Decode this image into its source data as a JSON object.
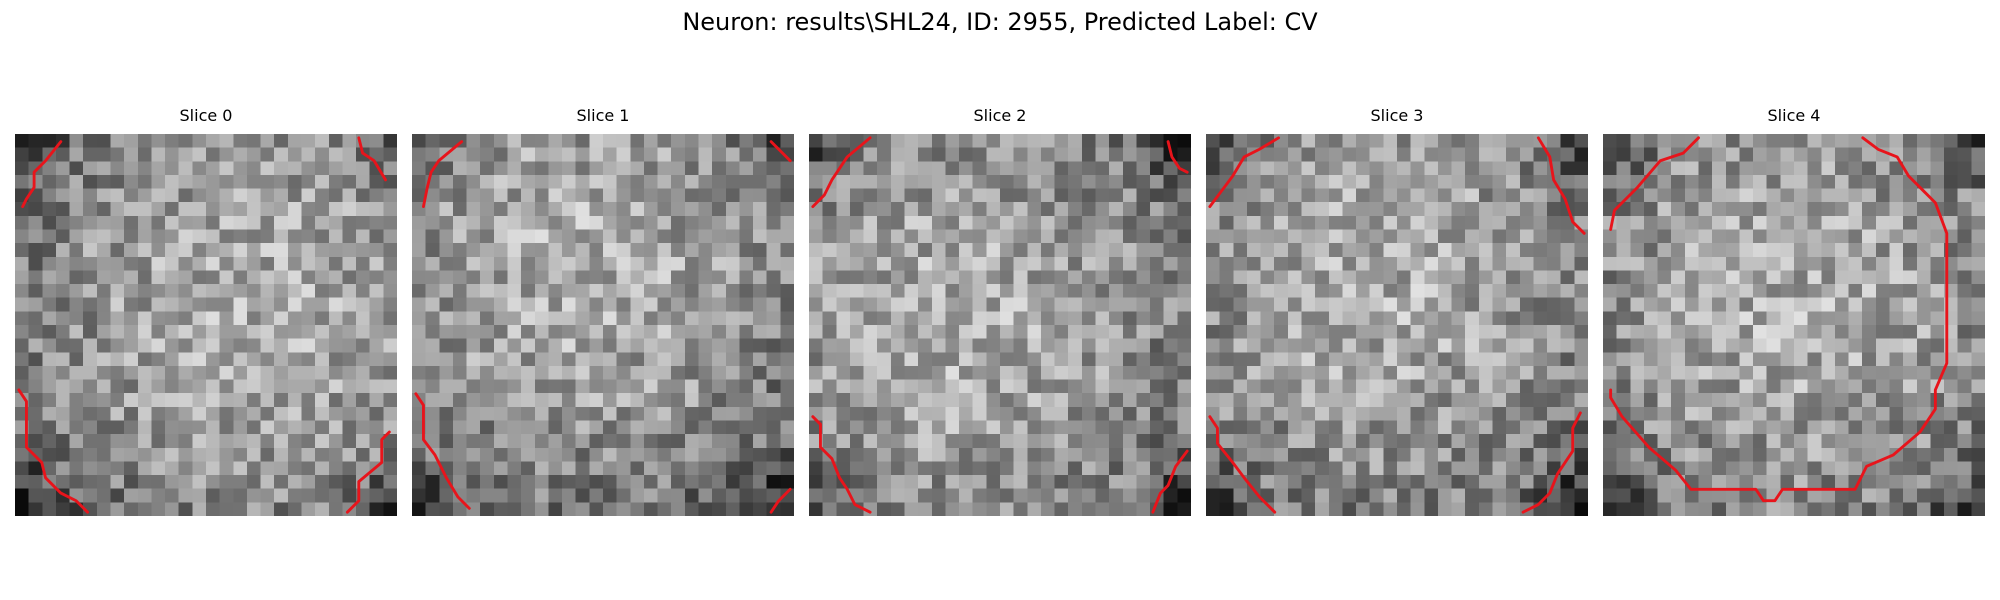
{
  "figure": {
    "title": "Neuron: results\\SHL24, ID: 2955, Predicted Label: CV"
  },
  "panels": [
    {
      "title": "Slice 0",
      "brightness_center": [
        0.62,
        0.45
      ],
      "contour": [
        [
          [
            0.12,
            0.02
          ],
          [
            0.08,
            0.07
          ],
          [
            0.05,
            0.1
          ],
          [
            0.05,
            0.14
          ],
          [
            0.03,
            0.17
          ],
          [
            0.02,
            0.19
          ]
        ],
        [
          [
            0.9,
            0.01
          ],
          [
            0.91,
            0.05
          ],
          [
            0.94,
            0.07
          ],
          [
            0.97,
            0.12
          ]
        ],
        [
          [
            0.01,
            0.67
          ],
          [
            0.03,
            0.7
          ],
          [
            0.03,
            0.82
          ],
          [
            0.07,
            0.86
          ],
          [
            0.08,
            0.9
          ],
          [
            0.12,
            0.94
          ],
          [
            0.16,
            0.96
          ],
          [
            0.19,
            0.99
          ]
        ],
        [
          [
            0.98,
            0.78
          ],
          [
            0.96,
            0.8
          ],
          [
            0.96,
            0.86
          ],
          [
            0.9,
            0.91
          ],
          [
            0.9,
            0.96
          ],
          [
            0.87,
            0.99
          ]
        ]
      ]
    },
    {
      "title": "Slice 1",
      "brightness_center": [
        0.45,
        0.35
      ],
      "contour": [
        [
          [
            0.13,
            0.02
          ],
          [
            0.07,
            0.07
          ],
          [
            0.05,
            0.1
          ],
          [
            0.04,
            0.14
          ],
          [
            0.03,
            0.19
          ]
        ],
        [
          [
            0.94,
            0.02
          ],
          [
            0.99,
            0.07
          ]
        ],
        [
          [
            0.01,
            0.68
          ],
          [
            0.03,
            0.71
          ],
          [
            0.03,
            0.8
          ],
          [
            0.06,
            0.84
          ],
          [
            0.09,
            0.9
          ],
          [
            0.12,
            0.95
          ],
          [
            0.15,
            0.98
          ]
        ],
        [
          [
            0.99,
            0.93
          ],
          [
            0.96,
            0.96
          ],
          [
            0.94,
            0.99
          ]
        ]
      ]
    },
    {
      "title": "Slice 2",
      "brightness_center": [
        0.4,
        0.5
      ],
      "contour": [
        [
          [
            0.16,
            0.01
          ],
          [
            0.1,
            0.06
          ],
          [
            0.06,
            0.12
          ],
          [
            0.04,
            0.16
          ],
          [
            0.01,
            0.19
          ]
        ],
        [
          [
            0.94,
            0.02
          ],
          [
            0.95,
            0.06
          ],
          [
            0.97,
            0.09
          ],
          [
            0.99,
            0.1
          ]
        ],
        [
          [
            0.01,
            0.74
          ],
          [
            0.03,
            0.76
          ],
          [
            0.03,
            0.82
          ],
          [
            0.06,
            0.85
          ],
          [
            0.08,
            0.9
          ],
          [
            0.1,
            0.93
          ],
          [
            0.12,
            0.97
          ],
          [
            0.16,
            0.99
          ]
        ],
        [
          [
            0.99,
            0.83
          ],
          [
            0.96,
            0.87
          ],
          [
            0.94,
            0.92
          ],
          [
            0.92,
            0.94
          ],
          [
            0.9,
            0.99
          ]
        ]
      ]
    },
    {
      "title": "Slice 3",
      "brightness_center": [
        0.45,
        0.4
      ],
      "contour": [
        [
          [
            0.19,
            0.01
          ],
          [
            0.14,
            0.04
          ],
          [
            0.1,
            0.06
          ],
          [
            0.07,
            0.11
          ],
          [
            0.04,
            0.15
          ],
          [
            0.01,
            0.19
          ]
        ],
        [
          [
            0.87,
            0.01
          ],
          [
            0.9,
            0.06
          ],
          [
            0.91,
            0.12
          ],
          [
            0.94,
            0.17
          ],
          [
            0.96,
            0.23
          ],
          [
            0.99,
            0.26
          ]
        ],
        [
          [
            0.01,
            0.74
          ],
          [
            0.03,
            0.77
          ],
          [
            0.03,
            0.81
          ],
          [
            0.07,
            0.86
          ],
          [
            0.1,
            0.9
          ],
          [
            0.14,
            0.95
          ],
          [
            0.18,
            0.99
          ]
        ],
        [
          [
            0.98,
            0.73
          ],
          [
            0.96,
            0.77
          ],
          [
            0.96,
            0.83
          ],
          [
            0.92,
            0.89
          ],
          [
            0.9,
            0.94
          ],
          [
            0.87,
            0.97
          ],
          [
            0.83,
            0.99
          ]
        ]
      ]
    },
    {
      "title": "Slice 4",
      "brightness_center": [
        0.5,
        0.45
      ],
      "contour": [
        [
          [
            0.25,
            0.01
          ],
          [
            0.21,
            0.05
          ],
          [
            0.15,
            0.07
          ],
          [
            0.09,
            0.14
          ],
          [
            0.03,
            0.2
          ],
          [
            0.02,
            0.25
          ]
        ],
        [
          [
            0.68,
            0.01
          ],
          [
            0.72,
            0.04
          ],
          [
            0.77,
            0.06
          ],
          [
            0.8,
            0.11
          ],
          [
            0.84,
            0.15
          ],
          [
            0.87,
            0.18
          ],
          [
            0.9,
            0.26
          ],
          [
            0.9,
            0.6
          ],
          [
            0.87,
            0.67
          ],
          [
            0.87,
            0.72
          ],
          [
            0.83,
            0.78
          ],
          [
            0.76,
            0.84
          ],
          [
            0.69,
            0.87
          ],
          [
            0.66,
            0.93
          ],
          [
            0.47,
            0.93
          ],
          [
            0.45,
            0.96
          ],
          [
            0.42,
            0.96
          ],
          [
            0.4,
            0.93
          ],
          [
            0.23,
            0.93
          ],
          [
            0.19,
            0.88
          ],
          [
            0.12,
            0.82
          ],
          [
            0.05,
            0.74
          ],
          [
            0.02,
            0.69
          ],
          [
            0.02,
            0.67
          ]
        ]
      ]
    }
  ]
}
